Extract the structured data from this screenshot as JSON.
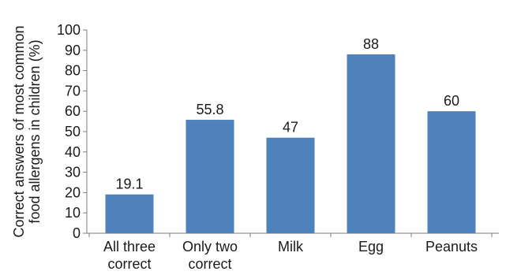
{
  "chart_data": {
    "type": "bar",
    "categories": [
      [
        "All three",
        "correct"
      ],
      [
        "Only two",
        "correct"
      ],
      [
        "Milk"
      ],
      [
        "Egg"
      ],
      [
        "Peanuts"
      ]
    ],
    "values": [
      19.1,
      55.8,
      47,
      88,
      60
    ],
    "data_labels": [
      "19.1",
      "55.8",
      "47",
      "88",
      "60"
    ],
    "ylabel_lines": [
      "Correct answers of most common",
      "food allergens in children (%)"
    ],
    "ylim": [
      0,
      100
    ],
    "yticks": [
      0,
      10,
      20,
      30,
      40,
      50,
      60,
      70,
      80,
      90,
      100
    ],
    "bar_color": "#4f81bd",
    "axis_color": "#7f7f7f",
    "grid": false,
    "legend": "none"
  }
}
